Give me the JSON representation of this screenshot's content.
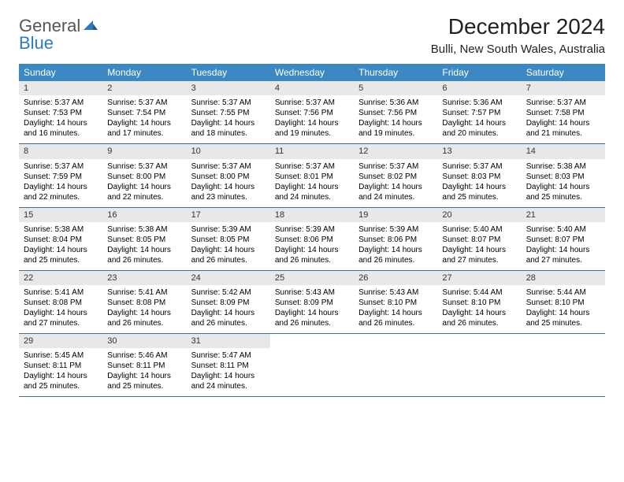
{
  "logo": {
    "text1": "General",
    "text2": "Blue"
  },
  "header": {
    "month_title": "December 2024",
    "location": "Bulli, New South Wales, Australia"
  },
  "colors": {
    "header_bg": "#3b88c3",
    "header_text": "#ffffff",
    "daynum_bg": "#e8e8e8",
    "row_border": "#3b6fa0",
    "logo_gray": "#555555",
    "logo_blue": "#2d7bbf"
  },
  "weekdays": [
    "Sunday",
    "Monday",
    "Tuesday",
    "Wednesday",
    "Thursday",
    "Friday",
    "Saturday"
  ],
  "weeks": [
    [
      {
        "n": "1",
        "sr": "5:37 AM",
        "ss": "7:53 PM",
        "dh": "14",
        "dm": "16"
      },
      {
        "n": "2",
        "sr": "5:37 AM",
        "ss": "7:54 PM",
        "dh": "14",
        "dm": "17"
      },
      {
        "n": "3",
        "sr": "5:37 AM",
        "ss": "7:55 PM",
        "dh": "14",
        "dm": "18"
      },
      {
        "n": "4",
        "sr": "5:37 AM",
        "ss": "7:56 PM",
        "dh": "14",
        "dm": "19"
      },
      {
        "n": "5",
        "sr": "5:36 AM",
        "ss": "7:56 PM",
        "dh": "14",
        "dm": "19"
      },
      {
        "n": "6",
        "sr": "5:36 AM",
        "ss": "7:57 PM",
        "dh": "14",
        "dm": "20"
      },
      {
        "n": "7",
        "sr": "5:37 AM",
        "ss": "7:58 PM",
        "dh": "14",
        "dm": "21"
      }
    ],
    [
      {
        "n": "8",
        "sr": "5:37 AM",
        "ss": "7:59 PM",
        "dh": "14",
        "dm": "22"
      },
      {
        "n": "9",
        "sr": "5:37 AM",
        "ss": "8:00 PM",
        "dh": "14",
        "dm": "22"
      },
      {
        "n": "10",
        "sr": "5:37 AM",
        "ss": "8:00 PM",
        "dh": "14",
        "dm": "23"
      },
      {
        "n": "11",
        "sr": "5:37 AM",
        "ss": "8:01 PM",
        "dh": "14",
        "dm": "24"
      },
      {
        "n": "12",
        "sr": "5:37 AM",
        "ss": "8:02 PM",
        "dh": "14",
        "dm": "24"
      },
      {
        "n": "13",
        "sr": "5:37 AM",
        "ss": "8:03 PM",
        "dh": "14",
        "dm": "25"
      },
      {
        "n": "14",
        "sr": "5:38 AM",
        "ss": "8:03 PM",
        "dh": "14",
        "dm": "25"
      }
    ],
    [
      {
        "n": "15",
        "sr": "5:38 AM",
        "ss": "8:04 PM",
        "dh": "14",
        "dm": "25"
      },
      {
        "n": "16",
        "sr": "5:38 AM",
        "ss": "8:05 PM",
        "dh": "14",
        "dm": "26"
      },
      {
        "n": "17",
        "sr": "5:39 AM",
        "ss": "8:05 PM",
        "dh": "14",
        "dm": "26"
      },
      {
        "n": "18",
        "sr": "5:39 AM",
        "ss": "8:06 PM",
        "dh": "14",
        "dm": "26"
      },
      {
        "n": "19",
        "sr": "5:39 AM",
        "ss": "8:06 PM",
        "dh": "14",
        "dm": "26"
      },
      {
        "n": "20",
        "sr": "5:40 AM",
        "ss": "8:07 PM",
        "dh": "14",
        "dm": "27"
      },
      {
        "n": "21",
        "sr": "5:40 AM",
        "ss": "8:07 PM",
        "dh": "14",
        "dm": "27"
      }
    ],
    [
      {
        "n": "22",
        "sr": "5:41 AM",
        "ss": "8:08 PM",
        "dh": "14",
        "dm": "27"
      },
      {
        "n": "23",
        "sr": "5:41 AM",
        "ss": "8:08 PM",
        "dh": "14",
        "dm": "26"
      },
      {
        "n": "24",
        "sr": "5:42 AM",
        "ss": "8:09 PM",
        "dh": "14",
        "dm": "26"
      },
      {
        "n": "25",
        "sr": "5:43 AM",
        "ss": "8:09 PM",
        "dh": "14",
        "dm": "26"
      },
      {
        "n": "26",
        "sr": "5:43 AM",
        "ss": "8:10 PM",
        "dh": "14",
        "dm": "26"
      },
      {
        "n": "27",
        "sr": "5:44 AM",
        "ss": "8:10 PM",
        "dh": "14",
        "dm": "26"
      },
      {
        "n": "28",
        "sr": "5:44 AM",
        "ss": "8:10 PM",
        "dh": "14",
        "dm": "25"
      }
    ],
    [
      {
        "n": "29",
        "sr": "5:45 AM",
        "ss": "8:11 PM",
        "dh": "14",
        "dm": "25"
      },
      {
        "n": "30",
        "sr": "5:46 AM",
        "ss": "8:11 PM",
        "dh": "14",
        "dm": "25"
      },
      {
        "n": "31",
        "sr": "5:47 AM",
        "ss": "8:11 PM",
        "dh": "14",
        "dm": "24"
      },
      null,
      null,
      null,
      null
    ]
  ],
  "labels": {
    "sunrise_prefix": "Sunrise: ",
    "sunset_prefix": "Sunset: ",
    "daylight_prefix": "Daylight: ",
    "hours_word": " hours",
    "and_word": "and ",
    "minutes_word": " minutes."
  }
}
